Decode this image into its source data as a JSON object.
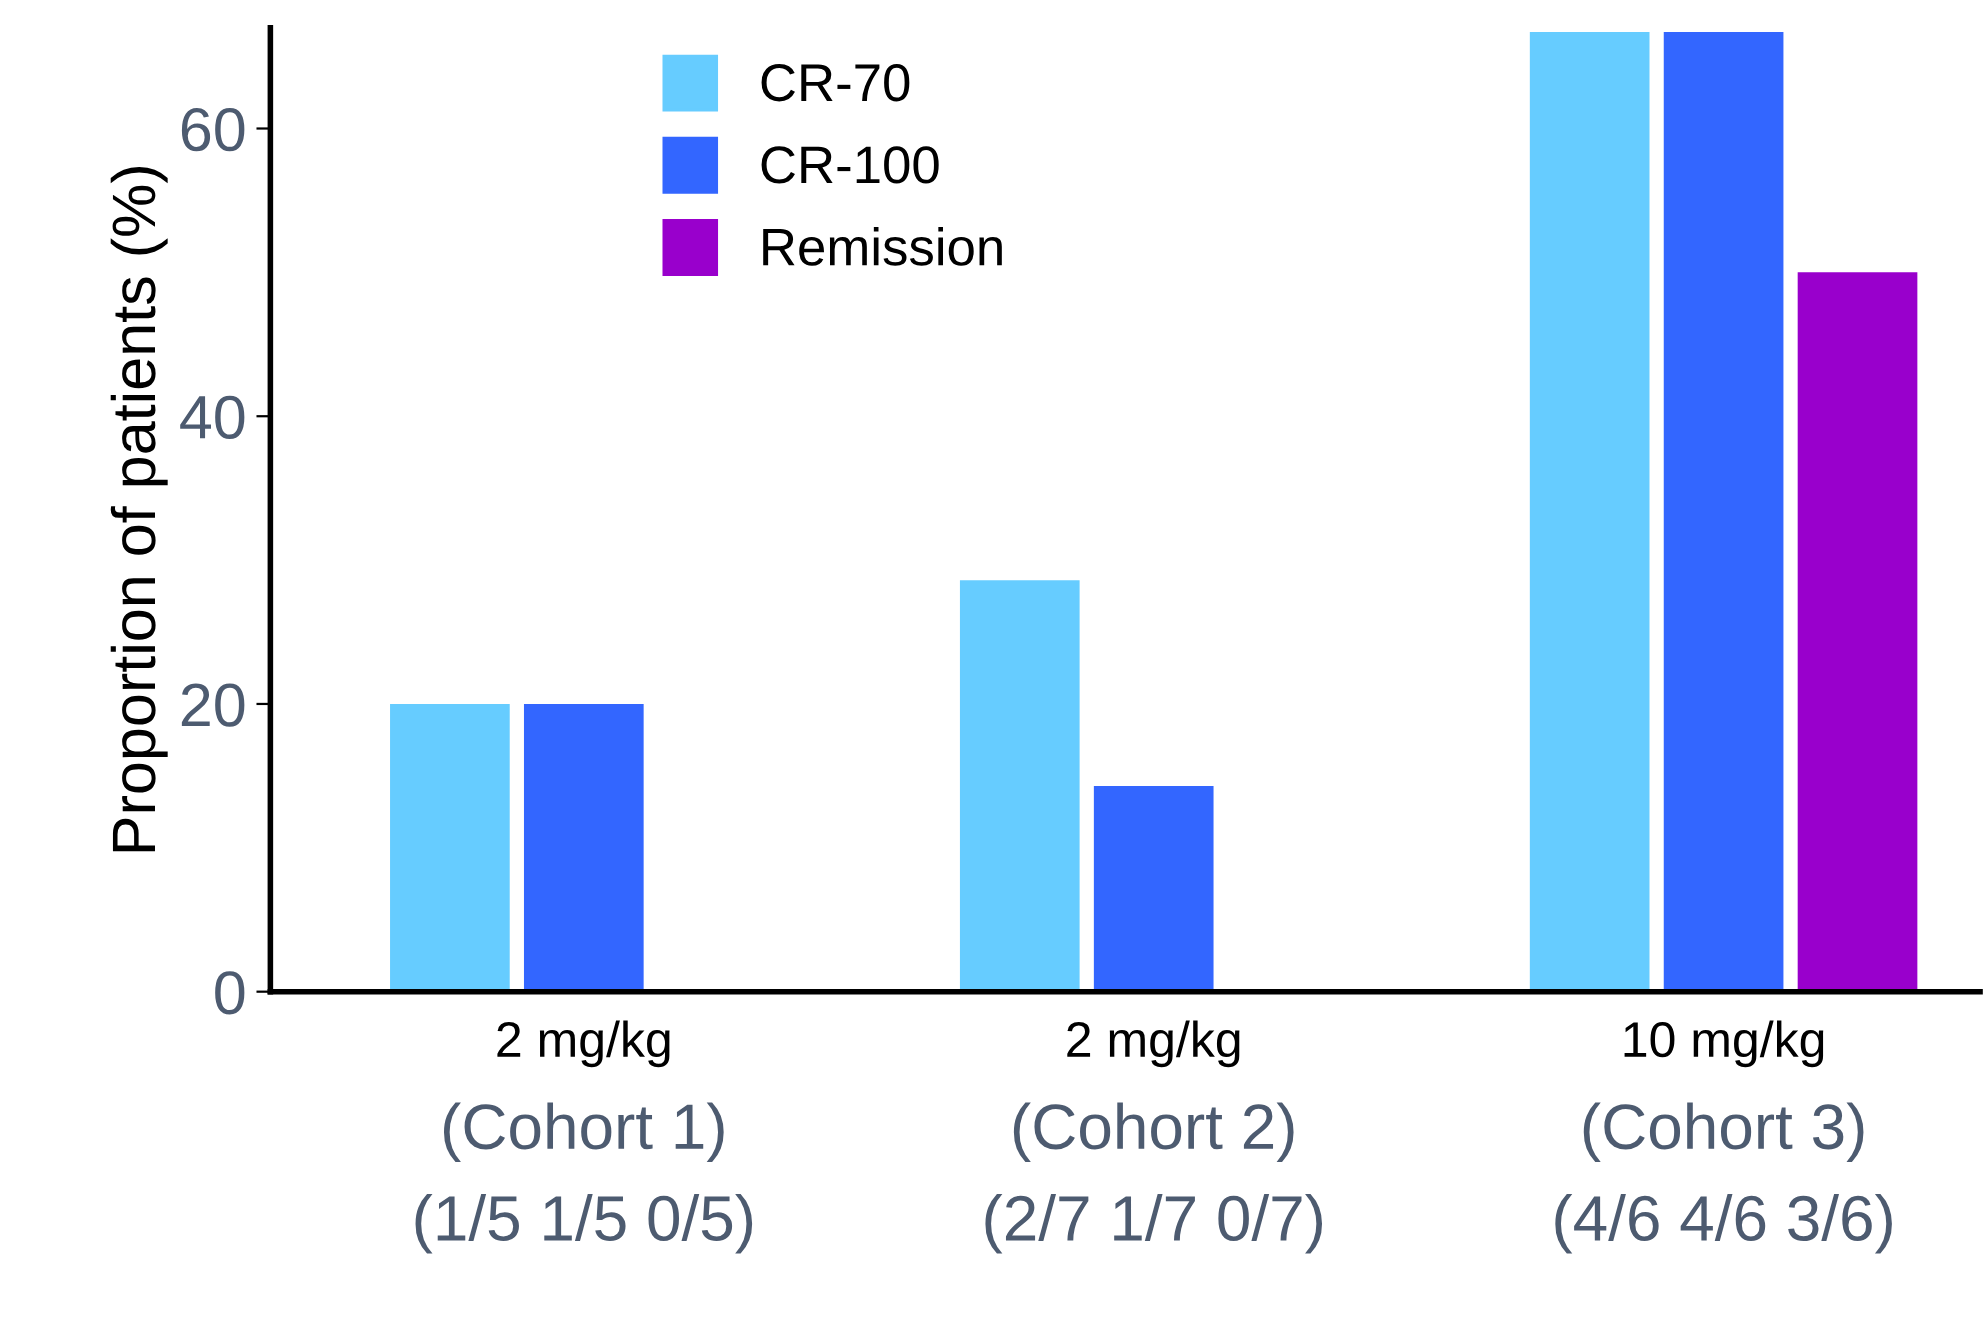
{
  "chart_data": {
    "type": "bar",
    "ylabel": "Proportion of patients (%)",
    "categories": [
      "2 mg/kg\n(Cohort 1)\n(1/5 1/5 0/5)",
      "2 mg/kg\n(Cohort 2)\n(2/7 1/7 0/7)",
      "10 mg/kg\n(Cohort 3)\n(4/6 4/6 3/6)"
    ],
    "series": [
      {
        "name": "CR-70",
        "color": "#66ccff",
        "values": [
          20,
          28.6,
          66.7
        ]
      },
      {
        "name": "CR-100",
        "color": "#3366ff",
        "values": [
          20,
          14.3,
          66.7
        ]
      },
      {
        "name": "Remission",
        "color": "#9900cc",
        "values": [
          0,
          0,
          50
        ]
      }
    ],
    "ylim": [
      0,
      67
    ],
    "yticks": [
      0,
      20,
      40,
      60
    ],
    "grid": false,
    "legend": "top"
  }
}
